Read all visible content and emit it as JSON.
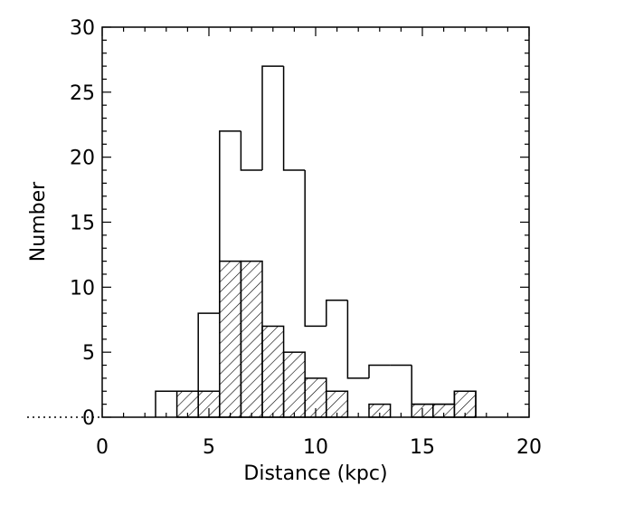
{
  "chart_data": {
    "type": "bar",
    "title": "",
    "xlabel": "Distance (kpc)",
    "ylabel": "Number",
    "xlim": [
      0,
      20
    ],
    "ylim": [
      0,
      30
    ],
    "bin_width": 1,
    "x_ticks": [
      0,
      5,
      10,
      15,
      20
    ],
    "y_ticks": [
      0,
      5,
      10,
      15,
      20,
      25,
      30
    ],
    "grid": false,
    "legend": "none",
    "series": [
      {
        "style": "outline",
        "bin_starts": [
          2.5,
          3.5,
          4.5,
          5.5,
          6.5,
          7.5,
          8.5,
          9.5,
          10.5,
          11.5,
          12.5,
          13.5,
          14.5,
          15.5,
          16.5
        ],
        "values": [
          2,
          2,
          8,
          22,
          19,
          27,
          19,
          7,
          9,
          3,
          4,
          4,
          1,
          1,
          2
        ]
      },
      {
        "style": "hatched",
        "bin_starts": [
          3.5,
          4.5,
          5.5,
          6.5,
          7.5,
          8.5,
          9.5,
          10.5,
          12.5,
          14.5,
          15.5,
          16.5
        ],
        "values": [
          2,
          2,
          12,
          12,
          7,
          5,
          3,
          2,
          1,
          1,
          1,
          2
        ]
      }
    ]
  }
}
